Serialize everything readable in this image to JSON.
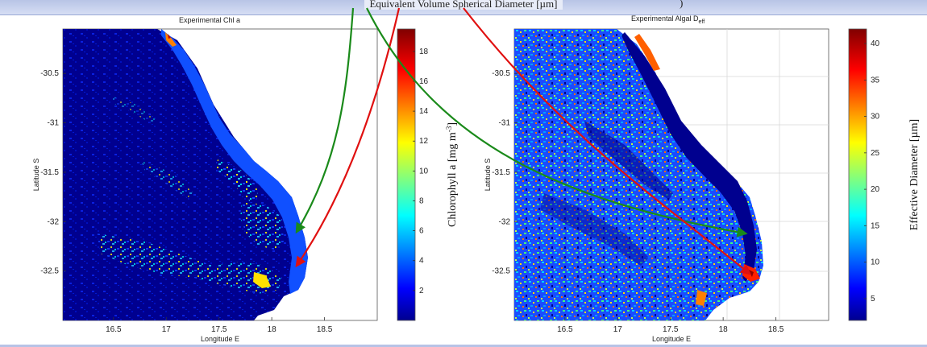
{
  "caption": "Equivalent Volume Spherical Diameter [µm]",
  "caption_right_mark": ")",
  "chart_data": [
    {
      "type": "heatmap",
      "title": "Experimental Chl a",
      "xlabel": "Longitude E",
      "ylabel": "Latitude S",
      "x_ticks": [
        "16.5",
        "17",
        "17.5",
        "18",
        "18.5"
      ],
      "y_ticks": [
        "-30.5",
        "-31",
        "-31.5",
        "-32",
        "-32.5"
      ],
      "colorbar_ticks": [
        "2",
        "4",
        "6",
        "8",
        "10",
        "12",
        "14",
        "16",
        "18"
      ],
      "colorbar_label": "Chlorophyll a [mg m",
      "colorbar_label_sup": "-3",
      "colorbar_label_end": "]",
      "colorbar_range": [
        0,
        19.5
      ],
      "colormap": "jet",
      "grid": false
    },
    {
      "type": "heatmap",
      "title": "Experimental Algal D",
      "title_sub": "eff",
      "xlabel": "Longitude E",
      "ylabel": "Latitude S",
      "x_ticks": [
        "16.5",
        "17",
        "17.5",
        "18",
        "18.5"
      ],
      "y_ticks": [
        "-30.5",
        "-31",
        "-31.5",
        "-32",
        "-32.5"
      ],
      "colorbar_ticks": [
        "5",
        "10",
        "15",
        "20",
        "25",
        "30",
        "35",
        "40"
      ],
      "colorbar_label": "Effective Diameter  [µm]",
      "colorbar_range": [
        2,
        42
      ],
      "colormap": "jet",
      "grid": true
    }
  ],
  "colors": {
    "arrow_green": "#1a8a1a",
    "arrow_red": "#e01010",
    "ocean_dark": "#00008f",
    "land": "#ffffff"
  }
}
